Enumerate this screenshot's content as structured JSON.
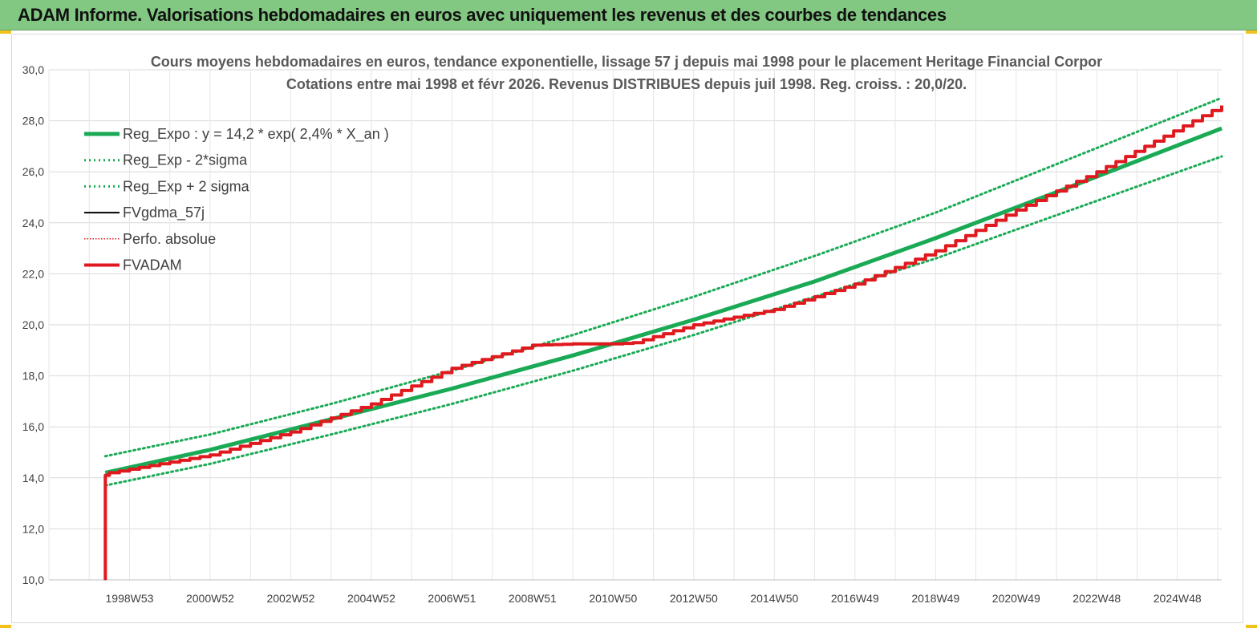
{
  "banner": {
    "title": "ADAM Informe. Valorisations hebdomadaires en euros avec uniquement les revenus et des courbes de tendances"
  },
  "colors": {
    "banner_bg": "#82c882",
    "reg_green": "#1aaa55",
    "fvadam_red": "#e0191e",
    "fvgdma_black": "#000000",
    "corner_accent": "#f2c21a"
  },
  "chart_data": {
    "type": "line",
    "title_lines": [
      "Cours moyens hebdomadaires en euros, tendance exponentielle, lissage 57 j depuis mai 1998 pour le placement Heritage Financial Corpor",
      "Cotations entre mai 1998 et févr 2026. Revenus DISTRIBUES depuis juil 1998. Reg. croiss. : 20,0/20."
    ],
    "xlabel": "",
    "ylabel": "",
    "ylim": [
      10,
      30
    ],
    "xlim": [
      1997.0,
      2026.1
    ],
    "y_ticks": [
      "10,0",
      "12,0",
      "14,0",
      "16,0",
      "18,0",
      "20,0",
      "22,0",
      "24,0",
      "26,0",
      "28,0",
      "30,0"
    ],
    "x_ticks": [
      {
        "label": "1998W53",
        "x": 1999.0
      },
      {
        "label": "2000W52",
        "x": 2001.0
      },
      {
        "label": "2002W52",
        "x": 2003.0
      },
      {
        "label": "2004W52",
        "x": 2005.0
      },
      {
        "label": "2006W51",
        "x": 2007.0
      },
      {
        "label": "2008W51",
        "x": 2009.0
      },
      {
        "label": "2010W50",
        "x": 2011.0
      },
      {
        "label": "2012W50",
        "x": 2013.0
      },
      {
        "label": "2014W50",
        "x": 2015.0
      },
      {
        "label": "2016W49",
        "x": 2017.0
      },
      {
        "label": "2018W49",
        "x": 2019.0
      },
      {
        "label": "2020W49",
        "x": 2021.0
      },
      {
        "label": "2022W48",
        "x": 2023.0
      },
      {
        "label": "2024W48",
        "x": 2025.0
      }
    ],
    "grid": true,
    "legend_position": "top-left",
    "series": [
      {
        "name": "Reg_Expo : y = 14,2 * exp( 2,4% *  X_an )",
        "style": "solid-thick",
        "color": "#1aaa55",
        "x": [
          1998.4,
          2001.0,
          2004.0,
          2007.0,
          2010.0,
          2013.0,
          2016.0,
          2019.0,
          2022.0,
          2026.1
        ],
        "y": [
          14.2,
          15.1,
          16.3,
          17.5,
          18.8,
          20.2,
          21.7,
          23.4,
          25.2,
          27.7
        ]
      },
      {
        "name": "Reg_Exp - 2*sigma",
        "style": "dotted",
        "color": "#1aaa55",
        "x": [
          1998.4,
          2001.0,
          2004.0,
          2007.0,
          2010.0,
          2013.0,
          2016.0,
          2019.0,
          2022.0,
          2026.1
        ],
        "y": [
          13.7,
          14.55,
          15.7,
          16.9,
          18.2,
          19.6,
          21.1,
          22.6,
          24.3,
          26.6
        ]
      },
      {
        "name": "Reg_Exp + 2 sigma",
        "style": "dotted",
        "color": "#1aaa55",
        "x": [
          1998.4,
          2001.0,
          2004.0,
          2007.0,
          2010.0,
          2013.0,
          2016.0,
          2019.0,
          2022.0,
          2026.1
        ],
        "y": [
          14.85,
          15.7,
          16.9,
          18.2,
          19.6,
          21.1,
          22.7,
          24.4,
          26.3,
          28.9
        ]
      },
      {
        "name": "FVgdma_57j",
        "style": "solid",
        "color": "#000000",
        "x": [
          1998.4,
          1998.4,
          1998.5,
          2001.0,
          2003.0,
          2005.0,
          2007.0,
          2009.0,
          2010.0,
          2011.0,
          2011.5,
          2013.0,
          2015.0,
          2017.0,
          2019.0,
          2021.0,
          2023.0,
          2026.1
        ],
        "y": [
          10.0,
          14.1,
          14.2,
          14.9,
          15.8,
          16.9,
          18.3,
          19.2,
          19.25,
          19.25,
          19.3,
          20.0,
          20.6,
          21.6,
          22.9,
          24.5,
          26.0,
          28.6
        ]
      },
      {
        "name": "Perfo. absolue",
        "style": "dotted-thin",
        "color": "#e0191e",
        "x": [
          1998.4,
          1998.4,
          1998.5,
          2001.0,
          2003.0,
          2005.0,
          2007.0,
          2009.0,
          2010.0,
          2011.0,
          2011.5,
          2013.0,
          2015.0,
          2017.0,
          2019.0,
          2021.0,
          2023.0,
          2026.1
        ],
        "y": [
          10.0,
          14.1,
          14.2,
          14.9,
          15.8,
          16.9,
          18.3,
          19.2,
          19.25,
          19.25,
          19.3,
          20.0,
          20.6,
          21.6,
          22.9,
          24.5,
          26.0,
          28.6
        ]
      },
      {
        "name": "FVADAM",
        "style": "solid-thick",
        "color": "#e0191e",
        "x": [
          1998.4,
          1998.4,
          1998.5,
          2001.0,
          2003.0,
          2005.0,
          2007.0,
          2009.0,
          2010.0,
          2011.0,
          2011.5,
          2013.0,
          2015.0,
          2017.0,
          2019.0,
          2021.0,
          2023.0,
          2026.1
        ],
        "y": [
          10.0,
          14.1,
          14.2,
          14.9,
          15.8,
          16.9,
          18.3,
          19.2,
          19.25,
          19.25,
          19.3,
          20.0,
          20.6,
          21.6,
          22.9,
          24.5,
          26.0,
          28.6
        ]
      }
    ]
  }
}
